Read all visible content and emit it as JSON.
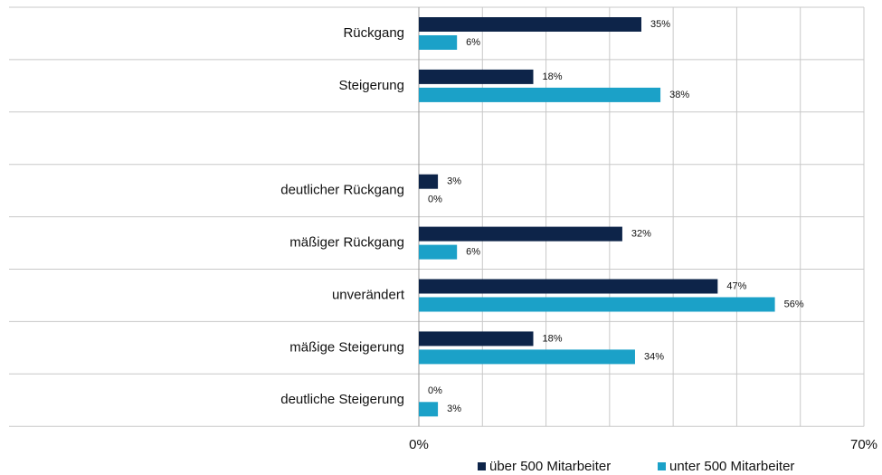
{
  "chart_data": {
    "type": "bar",
    "orientation": "horizontal",
    "categories": [
      "Rückgang",
      "Steigerung",
      null,
      "deutlicher Rückgang",
      "mäßiger Rückgang",
      "unverändert",
      "mäßige Steigerung",
      "deutliche Steigerung"
    ],
    "series": [
      {
        "name": "über 500 Mitarbeiter",
        "color": "#0d2449",
        "values": [
          35,
          18,
          null,
          3,
          32,
          47,
          18,
          0
        ],
        "value_labels": [
          "35%",
          "18%",
          null,
          "3%",
          "32%",
          "47%",
          "18%",
          "0%"
        ]
      },
      {
        "name": "unter 500 Mitarbeiter",
        "color": "#1ba1c8",
        "values": [
          6,
          38,
          null,
          0,
          6,
          56,
          34,
          3
        ],
        "value_labels": [
          "6%",
          "38%",
          null,
          "0%",
          "6%",
          "56%",
          "34%",
          "3%"
        ]
      }
    ],
    "xlim": [
      0,
      70
    ],
    "xticks": [
      {
        "value": 0,
        "label": "0%"
      },
      {
        "value": 70,
        "label": "70%"
      }
    ],
    "xgrid": [
      0,
      10,
      20,
      30,
      40,
      50,
      60,
      70
    ],
    "legend": "bottom"
  }
}
